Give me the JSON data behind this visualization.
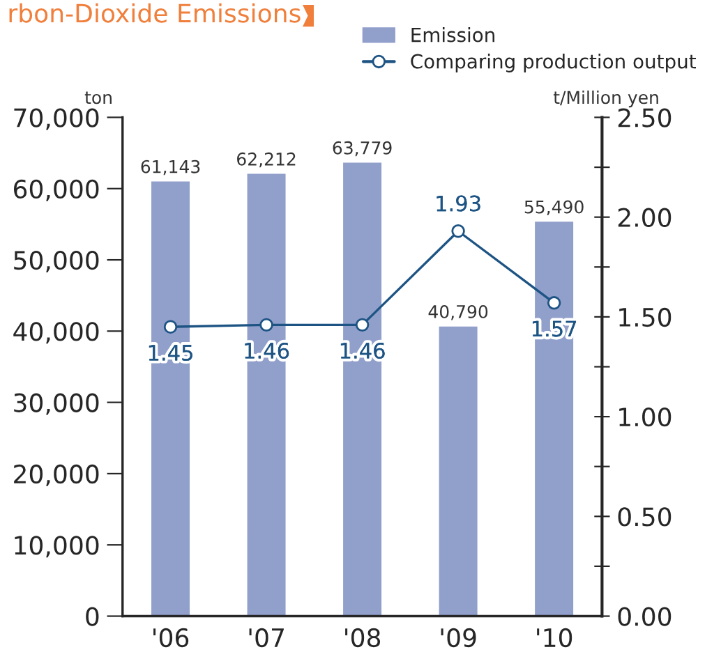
{
  "chart_data": {
    "type": "bar",
    "title": "rbon-Dioxide Emissions",
    "categories": [
      "'06",
      "'07",
      "'08",
      "'09",
      "'10"
    ],
    "ylabel": "ton",
    "y2label": "t/Million yen",
    "series": [
      {
        "name": "Emission",
        "color": "#919fcb",
        "values": [
          61143,
          62212,
          63779,
          40790,
          55490
        ],
        "value_labels": [
          "61,143",
          "62,212",
          "63,779",
          "40,790",
          "55,490"
        ]
      },
      {
        "name": "Comparing production output",
        "type": "line",
        "axis": "y2",
        "color": "#1d5484",
        "marker": "circle",
        "values": [
          1.45,
          1.46,
          1.46,
          1.93,
          1.57
        ]
      }
    ],
    "ylim": [
      0,
      70000
    ],
    "yticks": [
      {
        "value": 0,
        "label": "0"
      },
      {
        "value": 10000,
        "label": "10,000"
      },
      {
        "value": 20000,
        "label": "20,000"
      },
      {
        "value": 30000,
        "label": "30,000"
      },
      {
        "value": 40000,
        "label": "40,000"
      },
      {
        "value": 50000,
        "label": "50,000"
      },
      {
        "value": 60000,
        "label": "60,000"
      },
      {
        "value": 70000,
        "label": "70,000"
      }
    ],
    "y2lim": [
      0,
      2.5
    ],
    "y2ticks": [
      {
        "value": 0,
        "label": "0.00"
      },
      {
        "value": 0.25,
        "label": null
      },
      {
        "value": 0.5,
        "label": "0.50"
      },
      {
        "value": 0.75,
        "label": null
      },
      {
        "value": 1.0,
        "label": "1.00"
      },
      {
        "value": 1.25,
        "label": null
      },
      {
        "value": 1.5,
        "label": "1.50"
      },
      {
        "value": 1.75,
        "label": null
      },
      {
        "value": 2.0,
        "label": "2.00"
      },
      {
        "value": 2.25,
        "label": null
      },
      {
        "value": 2.5,
        "label": "2.50"
      }
    ],
    "data_labels": true,
    "grid": false,
    "legend": "top right"
  }
}
